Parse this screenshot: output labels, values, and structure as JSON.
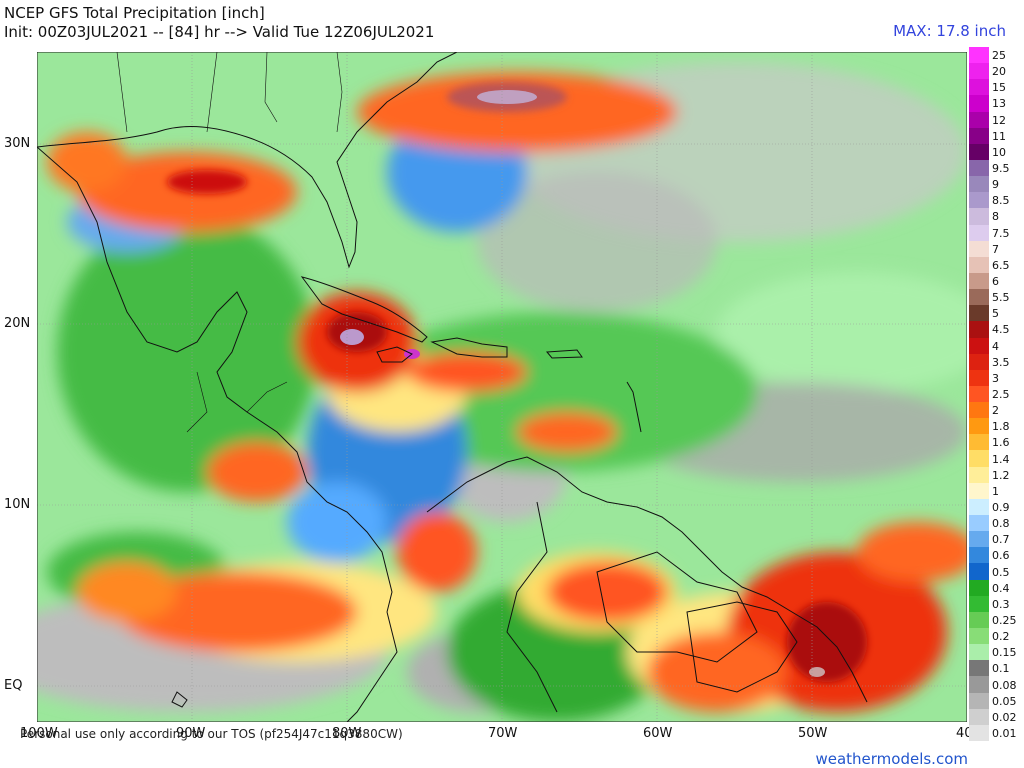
{
  "header": {
    "title": "NCEP GFS Total Precipitation [inch]",
    "subtitle": "Init: 00Z03JUL2021 -- [84] hr --> Valid Tue 12Z06JUL2021",
    "max_label": "MAX: 17.8 inch"
  },
  "axes": {
    "lat_labels": [
      "30N",
      "20N",
      "10N",
      "EQ"
    ],
    "lon_labels": [
      "100W",
      "90W",
      "80W",
      "70W",
      "60W",
      "50W",
      "40"
    ]
  },
  "footer": {
    "credit": "Personal use only according to our TOS (pf254J47c11q3880CW)",
    "site": "weathermodels.com"
  },
  "legend": {
    "levels": [
      "25",
      "20",
      "15",
      "13",
      "12",
      "11",
      "10",
      "9.5",
      "9",
      "8.5",
      "8",
      "7.5",
      "7",
      "6.5",
      "6",
      "5.5",
      "5",
      "4.5",
      "4",
      "3.5",
      "3",
      "2.5",
      "2",
      "1.8",
      "1.6",
      "1.4",
      "1.2",
      "1",
      "0.9",
      "0.8",
      "0.7",
      "0.6",
      "0.5",
      "0.4",
      "0.3",
      "0.25",
      "0.2",
      "0.15",
      "0.1",
      "0.08",
      "0.05",
      "0.02",
      "0.01"
    ],
    "colors": [
      "#ff33ff",
      "#ee22ee",
      "#dd11dd",
      "#cc00cc",
      "#aa00aa",
      "#880088",
      "#660066",
      "#8866aa",
      "#9988bb",
      "#aa99cc",
      "#ccbbdd",
      "#ddccee",
      "#f4ddd4",
      "#e6c2b6",
      "#c89a8a",
      "#9a6a5a",
      "#6a3a2a",
      "#aa1111",
      "#cc1111",
      "#dd2211",
      "#ee3311",
      "#ff5522",
      "#ff7711",
      "#ff9911",
      "#ffbb33",
      "#ffdd66",
      "#ffee99",
      "#fff6cc",
      "#cceeff",
      "#99ccff",
      "#66aaee",
      "#3388dd",
      "#1166cc",
      "#22aa22",
      "#33bb33",
      "#66cc55",
      "#88dd77",
      "#aaeeaa",
      "#777777",
      "#999999",
      "#b5b5b5",
      "#cfcfcf",
      "#e3e3e3"
    ]
  }
}
